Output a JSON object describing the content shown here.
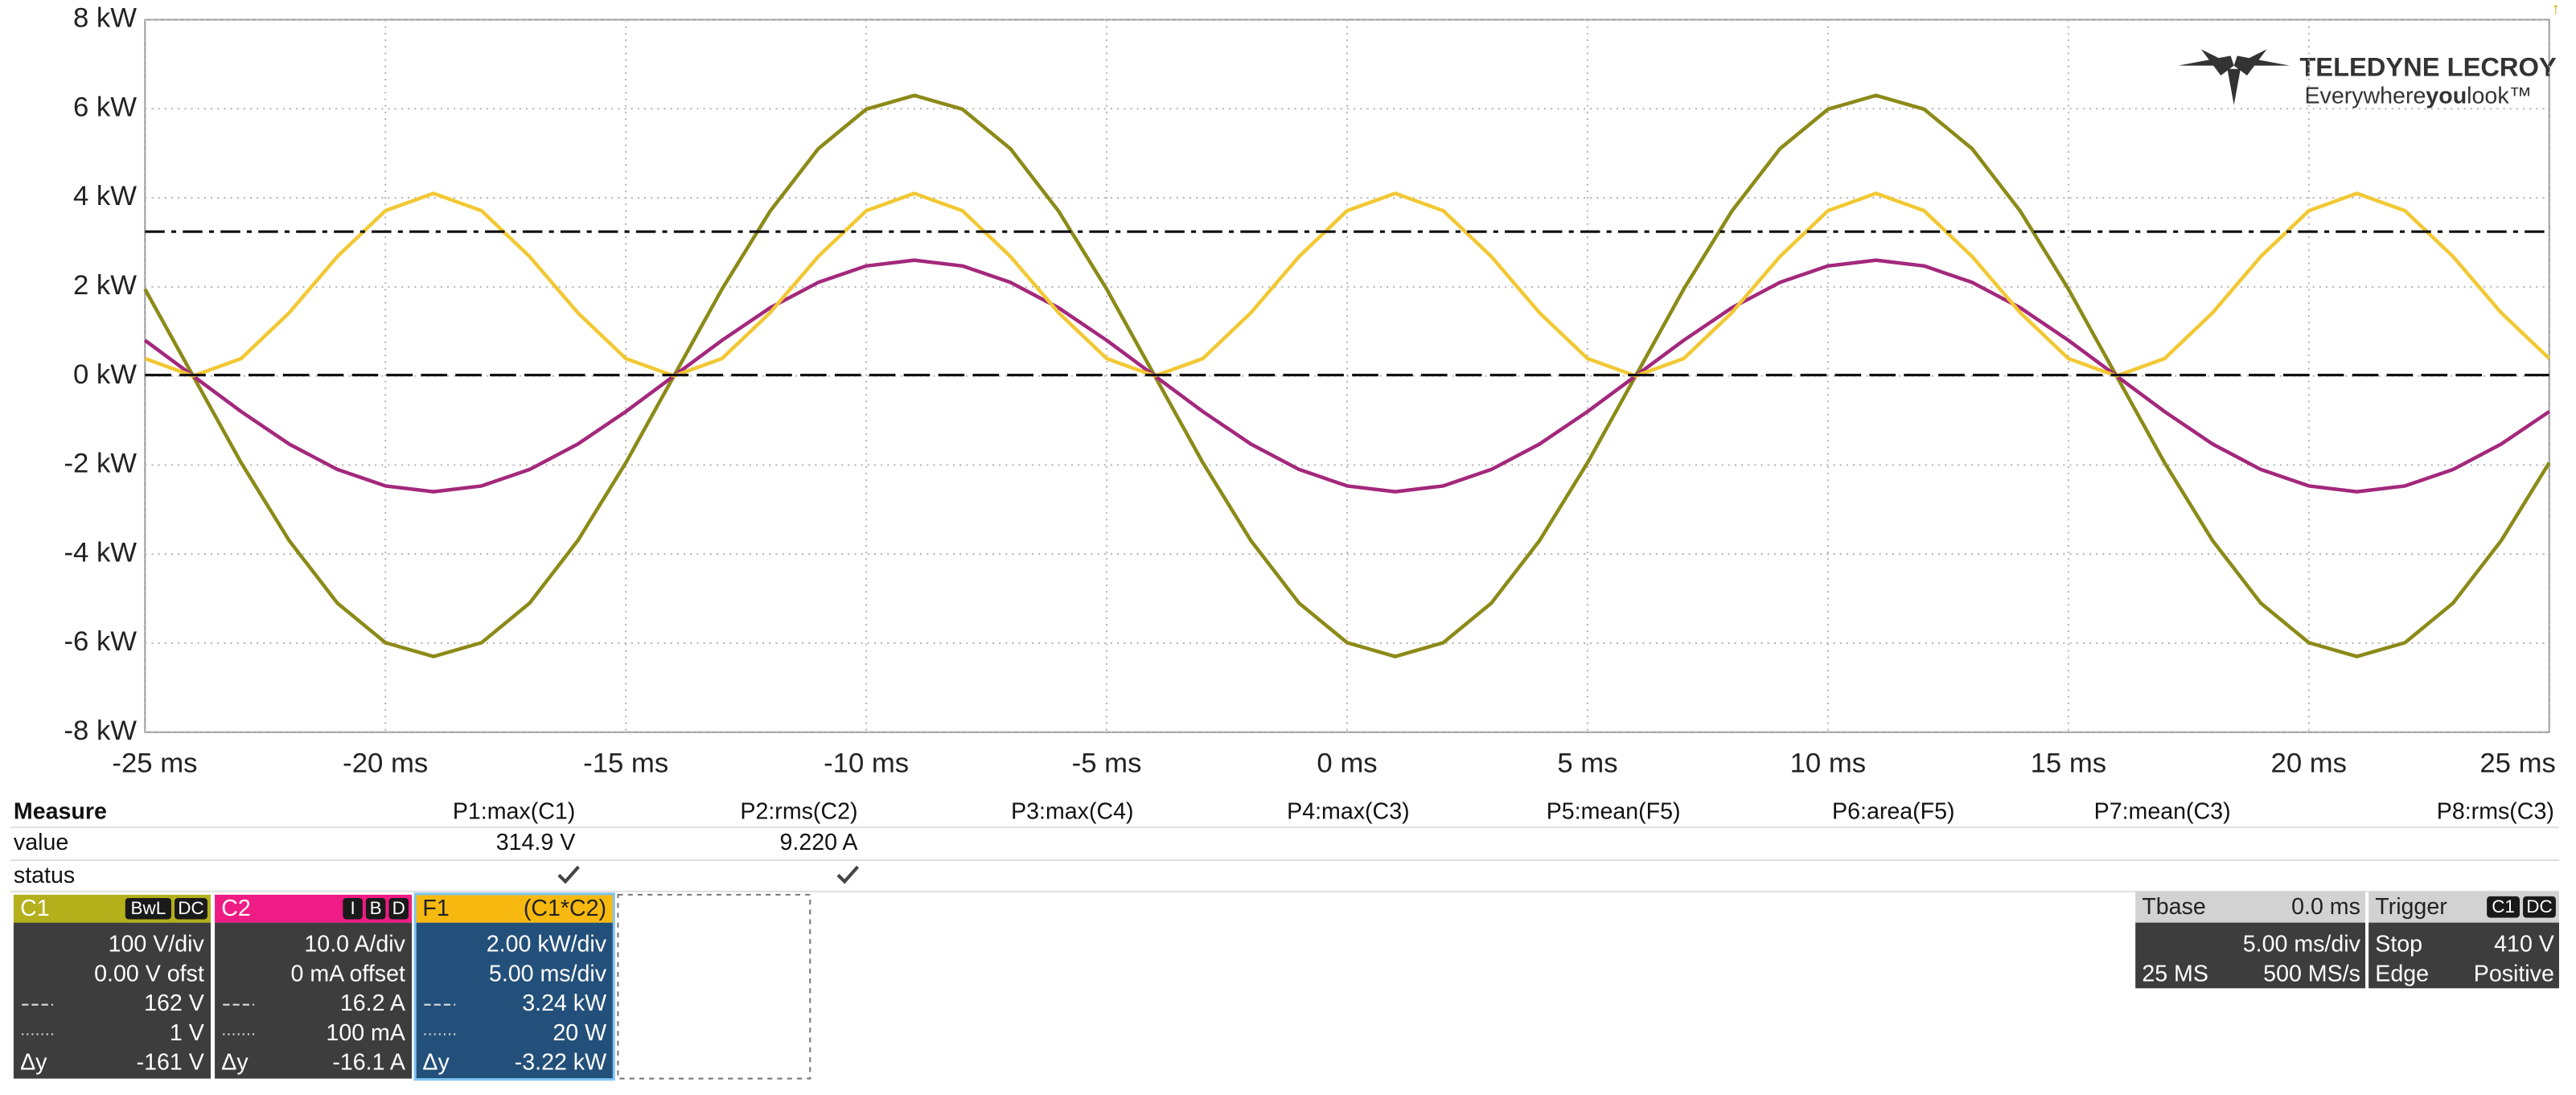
{
  "chart_data": {
    "type": "line",
    "x": [
      -25,
      -24,
      -23,
      -22,
      -21,
      -20,
      -19,
      -18,
      -17,
      -16,
      -15,
      -14,
      -13,
      -12,
      -11,
      -10,
      -9,
      -8,
      -7,
      -6,
      -5,
      -4,
      -3,
      -2,
      -1,
      0,
      1,
      2,
      3,
      4,
      5,
      6,
      7,
      8,
      9,
      10,
      11,
      12,
      13,
      14,
      15,
      16,
      17,
      18,
      19,
      20,
      21,
      22,
      23,
      24,
      25
    ],
    "xlim": [
      -25,
      25
    ],
    "ylim": [
      -8,
      8
    ],
    "xticks": [
      {
        "value": -25,
        "label": "-25 ms"
      },
      {
        "value": -20,
        "label": "-20 ms"
      },
      {
        "value": -15,
        "label": "-15 ms"
      },
      {
        "value": -10,
        "label": "-10 ms"
      },
      {
        "value": -5,
        "label": "-5 ms"
      },
      {
        "value": 0,
        "label": "0 ms"
      },
      {
        "value": 5,
        "label": "5 ms"
      },
      {
        "value": 10,
        "label": "10 ms"
      },
      {
        "value": 15,
        "label": "15 ms"
      },
      {
        "value": 20,
        "label": "20 ms"
      },
      {
        "value": 25,
        "label": "25 ms"
      }
    ],
    "yticks": [
      {
        "value": 8,
        "label": "8 kW"
      },
      {
        "value": 6,
        "label": "6 kW"
      },
      {
        "value": 4,
        "label": "4 kW"
      },
      {
        "value": 2,
        "label": "2 kW"
      },
      {
        "value": 0,
        "label": "0 kW"
      },
      {
        "value": -2,
        "label": "-2 kW"
      },
      {
        "value": -4,
        "label": "-4 kW"
      },
      {
        "value": -6,
        "label": "-6 kW"
      },
      {
        "value": -8,
        "label": "-8 kW"
      }
    ],
    "grid": true,
    "series": [
      {
        "color": "#8c8a18",
        "values": [
          1.95,
          0,
          -1.95,
          -3.7,
          -5.1,
          -5.99,
          -6.3,
          -5.99,
          -5.1,
          -3.7,
          -1.95,
          0,
          1.95,
          3.7,
          5.1,
          5.99,
          6.3,
          5.99,
          5.1,
          3.7,
          1.95,
          0,
          -1.95,
          -3.7,
          -5.1,
          -5.99,
          -6.3,
          -5.99,
          -5.1,
          -3.7,
          -1.95,
          0,
          1.95,
          3.7,
          5.1,
          5.99,
          6.3,
          5.99,
          5.1,
          3.7,
          1.95,
          0,
          -1.95,
          -3.7,
          -5.1,
          -5.99,
          -6.3,
          -5.99,
          -5.1,
          -3.7,
          -1.95
        ]
      },
      {
        "color": "#a3287c",
        "values": [
          0.8,
          0,
          -0.8,
          -1.53,
          -2.1,
          -2.47,
          -2.6,
          -2.47,
          -2.1,
          -1.53,
          -0.8,
          0,
          0.8,
          1.53,
          2.1,
          2.47,
          2.6,
          2.47,
          2.1,
          1.53,
          0.8,
          0,
          -0.8,
          -1.53,
          -2.1,
          -2.47,
          -2.6,
          -2.47,
          -2.1,
          -1.53,
          -0.8,
          0,
          0.8,
          1.53,
          2.1,
          2.47,
          2.6,
          2.47,
          2.1,
          1.53,
          0.8,
          0,
          -0.8,
          -1.53,
          -2.1,
          -2.47,
          -2.6,
          -2.47,
          -2.1,
          -1.53,
          -0.8
        ]
      },
      {
        "color": "#f2c833",
        "values": [
          0.39,
          0,
          0.39,
          1.42,
          2.68,
          3.71,
          4.1,
          3.71,
          2.68,
          1.42,
          0.39,
          0,
          0.39,
          1.42,
          2.68,
          3.71,
          4.1,
          3.71,
          2.68,
          1.42,
          0.39,
          0,
          0.39,
          1.42,
          2.68,
          3.71,
          4.1,
          3.71,
          2.68,
          1.42,
          0.39,
          0,
          0.39,
          1.42,
          2.68,
          3.71,
          4.1,
          3.71,
          2.68,
          1.42,
          0.39,
          0,
          0.39,
          1.42,
          2.68,
          3.71,
          4.1,
          3.71,
          2.68,
          1.42,
          0.39
        ]
      }
    ],
    "cursors": [
      3.24,
      0.02
    ]
  },
  "logo": {
    "brand": "TELEDYNE LECROY",
    "tagline": [
      "Everywhere",
      "you",
      "look™"
    ]
  },
  "measure": {
    "title": "Measure",
    "params": [
      "P1:max(C1)",
      "P2:rms(C2)",
      "P3:max(C4)",
      "P4:max(C3)",
      "P5:mean(F5)",
      "P6:area(F5)",
      "P7:mean(C3)",
      "P8:rms(C3)"
    ],
    "rows": [
      {
        "label": "value",
        "cells": [
          "314.9 V",
          "9.220 A"
        ]
      },
      {
        "label": "status"
      }
    ]
  },
  "channels": [
    {
      "name": "C1",
      "color": "#b3b01c",
      "panel_color": "#3d3d3d",
      "badges": [
        "BwL",
        "DC"
      ],
      "rows": [
        [
          "100 V/div"
        ],
        [
          "0.00 V ofst"
        ],
        [
          "162 V"
        ],
        [
          "1 V"
        ],
        [
          "Δy",
          "-161 V"
        ]
      ]
    },
    {
      "name": "C2",
      "color": "#ee1c84",
      "panel_color": "#3d3d3d",
      "badges": [
        "I",
        "B",
        "D"
      ],
      "rows": [
        [
          "10.0 A/div"
        ],
        [
          "0 mA offset"
        ],
        [
          "16.2 A"
        ],
        [
          "100 mA"
        ],
        [
          "Δy",
          "-16.1 A"
        ]
      ]
    },
    {
      "name": "F1",
      "color": "#f7b90f",
      "panel_color": "#23507a",
      "formula": "(C1*C2)",
      "rows": [
        [
          "2.00 kW/div"
        ],
        [
          "5.00 ms/div"
        ],
        [
          "3.24 kW"
        ],
        [
          "20 W"
        ],
        [
          "Δy",
          "-3.22 kW"
        ]
      ]
    }
  ],
  "timebase": {
    "label": "Tbase",
    "delay": "0.0 ms",
    "scale": "5.00 ms/div",
    "samples": "25 MS",
    "rate": "500 MS/s"
  },
  "trigger": {
    "label": "Trigger",
    "badges": [
      "C1",
      "DC"
    ],
    "mode": "Stop",
    "level": "410 V",
    "type": "Edge",
    "slope": "Positive"
  }
}
